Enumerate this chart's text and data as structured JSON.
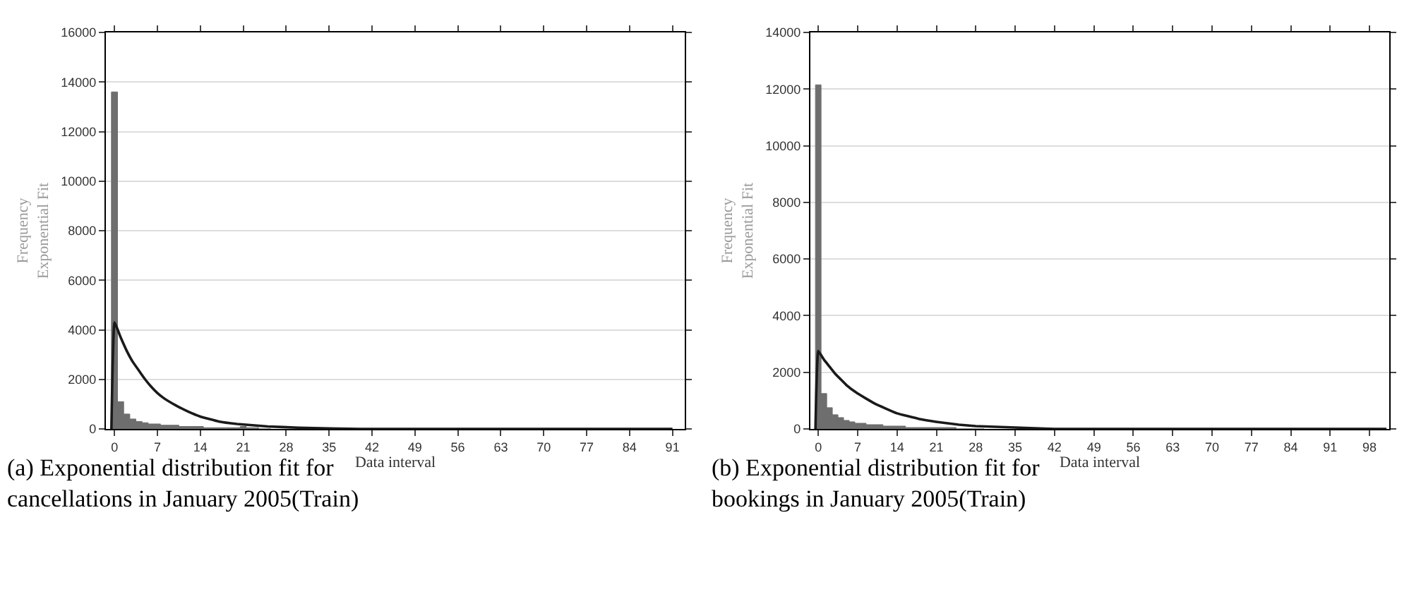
{
  "chart_data": [
    {
      "type": "histogram",
      "title": "(a) Exponential distribution fit for cancellations in January 2005(Train)",
      "xlabel": "Data interval",
      "ylabel": "Frequency\nExponential Fit",
      "bins": [
        -0.5,
        0.5,
        1.5,
        2.5,
        3.5,
        4.5,
        5.5,
        6.5,
        7.5,
        8.5,
        9.5,
        10.5,
        11.5,
        12.5,
        13.5,
        14.5,
        15.5,
        16.5,
        17.5,
        18.5,
        19.5,
        20.5,
        21.5,
        22.5,
        23.5,
        24.5,
        25.5
      ],
      "values": [
        13600,
        1100,
        600,
        400,
        300,
        250,
        200,
        200,
        150,
        150,
        150,
        100,
        100,
        100,
        100,
        50,
        50,
        50,
        50,
        50,
        50,
        100,
        50,
        50,
        0,
        0
      ],
      "color": "#6e6e6e",
      "series": [
        {
          "type": "line",
          "color": "#1a1a1a",
          "x": [
            -0.5,
            0,
            1,
            2,
            3,
            4,
            5,
            6,
            7,
            8,
            10,
            12,
            14,
            17,
            20,
            25,
            30,
            40,
            50,
            60,
            91
          ],
          "values": [
            0,
            4300,
            3700,
            3150,
            2700,
            2350,
            2000,
            1700,
            1450,
            1250,
            950,
            700,
            500,
            300,
            200,
            100,
            50,
            0,
            0,
            0,
            0
          ]
        }
      ],
      "xlim": [
        -1.4,
        93
      ],
      "xticks": [
        0,
        7,
        14,
        21,
        28,
        35,
        42,
        49,
        56,
        63,
        70,
        77,
        84,
        91
      ],
      "ylim": [
        0,
        16000
      ],
      "yticks": [
        0,
        2000,
        4000,
        6000,
        8000,
        10000,
        12000,
        14000,
        16000
      ],
      "grid": "y"
    },
    {
      "type": "histogram",
      "title": "(b) Exponential distribution fit for bookings in January 2005(Train)",
      "xlabel": "Data interval",
      "ylabel": "Frequency\nExponential Fit",
      "bins": [
        -0.5,
        0.5,
        1.5,
        2.5,
        3.5,
        4.5,
        5.5,
        6.5,
        7.5,
        8.5,
        9.5,
        10.5,
        11.5,
        12.5,
        13.5,
        14.5,
        15.5,
        16.5,
        17.5,
        18.5,
        19.5,
        20.5,
        21.5,
        22.5,
        23.5,
        24.5,
        25.5,
        26.5,
        27.5,
        28.5,
        29.5
      ],
      "values": [
        12150,
        1250,
        750,
        500,
        400,
        300,
        250,
        200,
        200,
        150,
        150,
        150,
        100,
        100,
        100,
        100,
        50,
        50,
        50,
        50,
        50,
        50,
        50,
        50,
        50,
        0,
        0,
        0,
        0,
        0
      ],
      "color": "#6e6e6e",
      "series": [
        {
          "type": "line",
          "color": "#1a1a1a",
          "x": [
            -0.5,
            0,
            1,
            2,
            3,
            4,
            5,
            7,
            10,
            14,
            18,
            21,
            25,
            28,
            35,
            42,
            49,
            60,
            70,
            101
          ],
          "values": [
            0,
            2750,
            2450,
            2200,
            1950,
            1750,
            1550,
            1250,
            900,
            550,
            350,
            250,
            150,
            100,
            50,
            0,
            0,
            0,
            0,
            0
          ]
        }
      ],
      "xlim": [
        -1.4,
        101.5
      ],
      "xticks": [
        0,
        7,
        14,
        21,
        28,
        35,
        42,
        49,
        56,
        63,
        70,
        77,
        84,
        91,
        98
      ],
      "ylim": [
        0,
        14000
      ],
      "yticks": [
        0,
        2000,
        4000,
        6000,
        8000,
        10000,
        12000,
        14000
      ],
      "grid": "y"
    }
  ]
}
